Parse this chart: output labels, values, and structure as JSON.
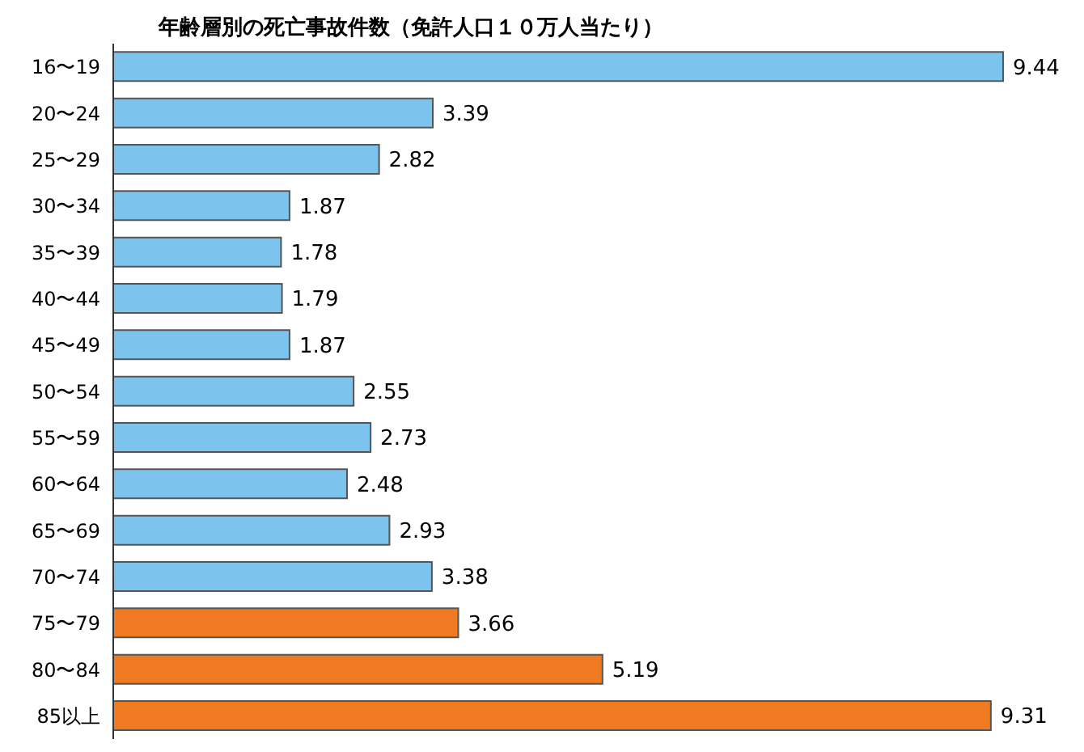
{
  "chart_data": {
    "type": "bar",
    "orientation": "horizontal",
    "title": "年齢層別の死亡事故件数（免許人口１０万人当たり）",
    "categories": [
      "16〜19",
      "20〜24",
      "25〜29",
      "30〜34",
      "35〜39",
      "40〜44",
      "45〜49",
      "50〜54",
      "55〜59",
      "60〜64",
      "65〜69",
      "70〜74",
      "75〜79",
      "80〜84",
      "85以上"
    ],
    "values": [
      9.44,
      3.39,
      2.82,
      1.87,
      1.78,
      1.79,
      1.87,
      2.55,
      2.73,
      2.48,
      2.93,
      3.38,
      3.66,
      5.19,
      9.31
    ],
    "colors": [
      "#7cc4ee",
      "#7cc4ee",
      "#7cc4ee",
      "#7cc4ee",
      "#7cc4ee",
      "#7cc4ee",
      "#7cc4ee",
      "#7cc4ee",
      "#7cc4ee",
      "#7cc4ee",
      "#7cc4ee",
      "#7cc4ee",
      "#f07a22",
      "#f07a22",
      "#f07a22"
    ],
    "data_labels": true
  }
}
